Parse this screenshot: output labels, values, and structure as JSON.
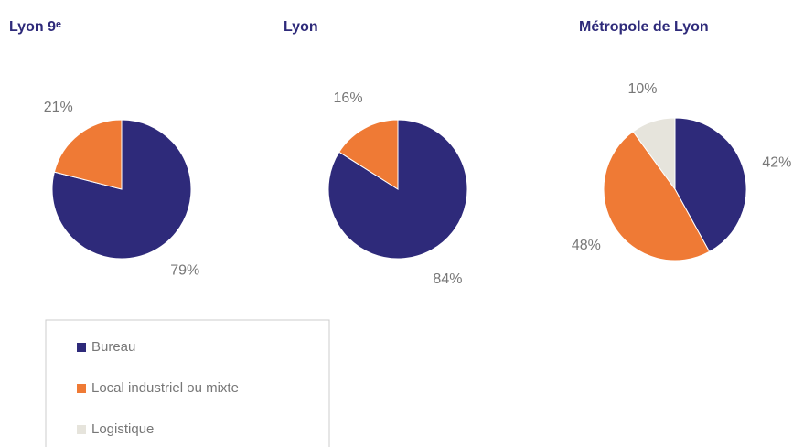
{
  "chart_data": [
    {
      "type": "pie",
      "title": "Lyon 9ᵉ",
      "values": [
        79,
        21
      ],
      "value_labels": [
        "79%",
        "21%"
      ]
    },
    {
      "type": "pie",
      "title": "Lyon",
      "values": [
        84,
        16
      ],
      "value_labels": [
        "84%",
        "16%"
      ]
    },
    {
      "type": "pie",
      "title": "Métropole de Lyon",
      "values": [
        42,
        48,
        10
      ],
      "value_labels": [
        "42%",
        "48%",
        "10%"
      ]
    }
  ],
  "legend": {
    "items": [
      {
        "label": "Bureau",
        "color": "#2e2a7a"
      },
      {
        "label": "Local industriel ou mixte",
        "color": "#ef7a35"
      },
      {
        "label": "Logistique",
        "color": "#e6e4dc"
      }
    ]
  }
}
